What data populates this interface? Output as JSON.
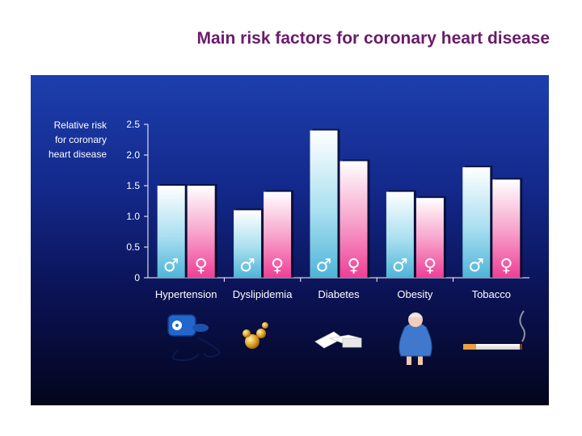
{
  "title": "Main risk factors for coronary heart disease",
  "chart_data": {
    "type": "bar",
    "title": "",
    "ylabel": "Relative risk\nfor coronary\nheart disease",
    "xlabel": "",
    "ylim": [
      0,
      2.5
    ],
    "yticks": [
      0,
      0.5,
      1.0,
      1.5,
      2.0,
      2.5
    ],
    "ytick_labels": [
      "0",
      "0.5",
      "1.0",
      "1.5",
      "2.0",
      "2.5"
    ],
    "grid": false,
    "categories": [
      "Hypertension",
      "Dyslipidemia",
      "Diabetes",
      "Obesity",
      "Tobacco"
    ],
    "series": [
      {
        "symbol": "♂",
        "color": "#6ec6e0",
        "values": [
          1.5,
          1.1,
          2.4,
          1.4,
          1.8
        ]
      },
      {
        "symbol": "♀",
        "color": "#f050a0",
        "values": [
          1.5,
          1.4,
          1.9,
          1.3,
          1.6
        ]
      }
    ],
    "illustrations": [
      "blood-pressure-monitor-icon",
      "cholesterol-molecule-icon",
      "sugar-cubes-icon",
      "obese-person-icon",
      "cigarette-icon"
    ]
  },
  "colors": {
    "title": "#6a1b6b",
    "background_top": "#1d3fae",
    "background_bottom": "#03051c",
    "axis": "#ffffff"
  }
}
